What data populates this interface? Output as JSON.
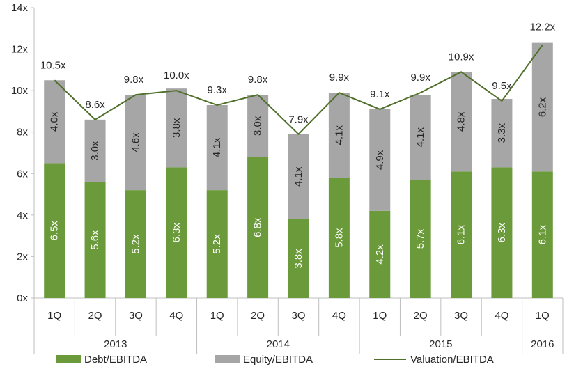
{
  "chart_data": {
    "type": "bar",
    "stacked": true,
    "categories": [
      "1Q",
      "2Q",
      "3Q",
      "4Q",
      "1Q",
      "2Q",
      "3Q",
      "4Q",
      "1Q",
      "2Q",
      "3Q",
      "4Q",
      "1Q"
    ],
    "groups": [
      {
        "label": "2013",
        "count": 4
      },
      {
        "label": "2014",
        "count": 4
      },
      {
        "label": "2015",
        "count": 4
      },
      {
        "label": "2016",
        "count": 1
      }
    ],
    "series": [
      {
        "name": "Debt/EBITDA",
        "kind": "bar",
        "color": "#6a9a3a",
        "label_color": "#ffffff",
        "values": [
          6.5,
          5.6,
          5.2,
          6.3,
          5.2,
          6.8,
          3.8,
          5.8,
          4.2,
          5.7,
          6.1,
          6.3,
          6.1
        ],
        "labels": [
          "6.5x",
          "5.6x",
          "5.2x",
          "6.3x",
          "5.2x",
          "6.8x",
          "3.8x",
          "5.8x",
          "4.2x",
          "5.7x",
          "6.1x",
          "6.3x",
          "6.1x"
        ]
      },
      {
        "name": "Equity/EBITDA",
        "kind": "bar",
        "color": "#a6a6a6",
        "label_color": "#262626",
        "values": [
          4.0,
          3.0,
          4.6,
          3.8,
          4.1,
          3.0,
          4.1,
          4.1,
          4.9,
          4.1,
          4.8,
          3.3,
          6.2
        ],
        "labels": [
          "4.0x",
          "3.0x",
          "4.6x",
          "3.8x",
          "4.1x",
          "3.0x",
          "4.1x",
          "4.1x",
          "4.9x",
          "4.1x",
          "4.8x",
          "3.3x",
          "6.2x"
        ]
      },
      {
        "name": "Valuation/EBITDA",
        "kind": "line",
        "color": "#4f6f2a",
        "values": [
          10.5,
          8.6,
          9.8,
          10.0,
          9.3,
          9.8,
          7.9,
          9.9,
          9.1,
          9.9,
          10.9,
          9.5,
          12.2
        ],
        "labels": [
          "10.5x",
          "8.6x",
          "9.8x",
          "10.0x",
          "9.3x",
          "9.8x",
          "7.9x",
          "9.9x",
          "9.1x",
          "9.9x",
          "10.9x",
          "9.5x",
          "12.2x"
        ]
      }
    ],
    "ylim": [
      0,
      14
    ],
    "yticks": [
      0,
      2,
      4,
      6,
      8,
      10,
      12,
      14
    ],
    "ytick_labels": [
      "0x",
      "2x",
      "4x",
      "6x",
      "8x",
      "10x",
      "12x",
      "14x"
    ],
    "grid": false,
    "legend_position": "bottom"
  }
}
